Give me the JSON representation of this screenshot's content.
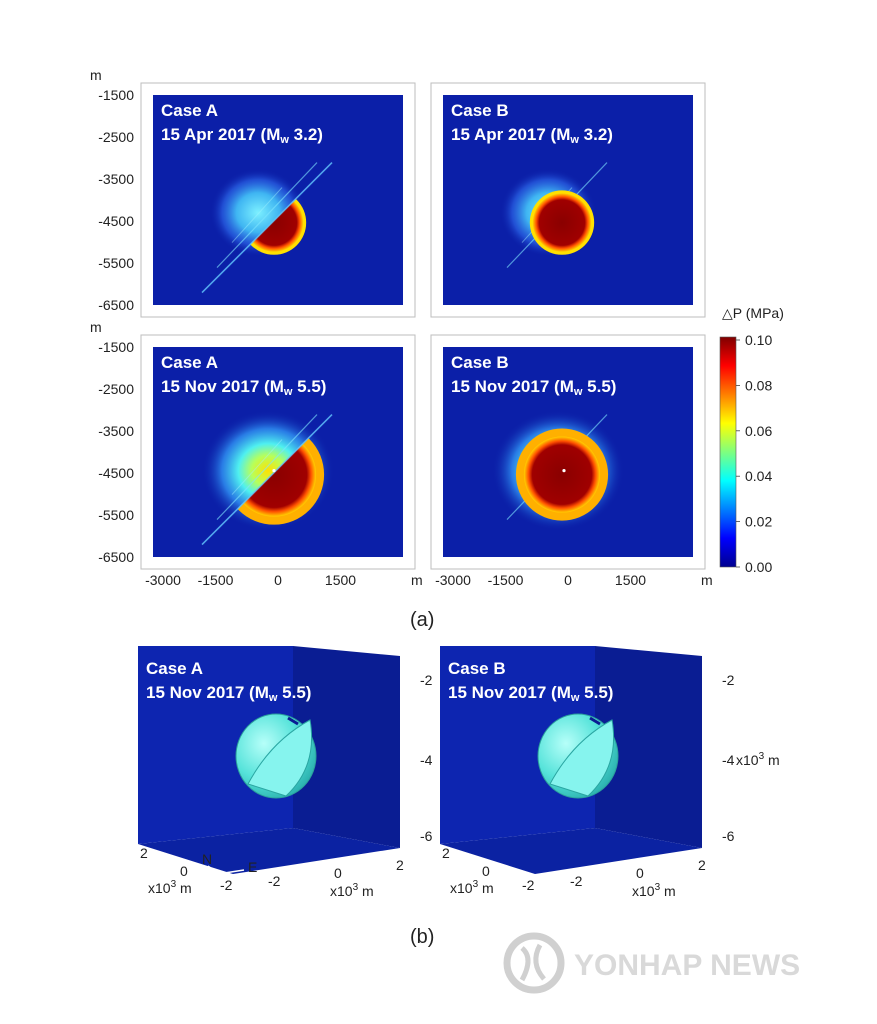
{
  "chart_data": [
    {
      "type": "heatmap",
      "title": "Case A",
      "subtitle": "15 Apr 2017 (Mw 3.2)",
      "subtitle_prefix": "15 Apr 2017 (",
      "subtitle_mag_main": "M",
      "subtitle_mag_sub": "w",
      "subtitle_suffix": " 3.2)",
      "variable": "ΔP (MPa)",
      "ylabel": "m",
      "yticks": [
        "-1500",
        "-2500",
        "-3500",
        "-4500",
        "-5500",
        "-6500"
      ],
      "ylim": [
        -6500,
        -1500
      ],
      "xlim": [
        -3000,
        3000
      ],
      "source_center": [
        0,
        -4300
      ],
      "source_radius_m": 500,
      "fault_cut": true,
      "max_value": 0.1
    },
    {
      "type": "heatmap",
      "title": "Case B",
      "subtitle": "15 Apr 2017 (Mw 3.2)",
      "subtitle_prefix": "15 Apr 2017 (",
      "subtitle_mag_main": "M",
      "subtitle_mag_sub": "w",
      "subtitle_suffix": " 3.2)",
      "variable": "ΔP (MPa)",
      "ylim": [
        -6500,
        -1500
      ],
      "xlim": [
        -3000,
        3000
      ],
      "source_center": [
        0,
        -4300
      ],
      "source_radius_m": 500,
      "fault_cut": false,
      "max_value": 0.1
    },
    {
      "type": "heatmap",
      "title": "Case A",
      "subtitle": "15 Nov 2017 (Mw 5.5)",
      "subtitle_prefix": "15 Nov 2017 (",
      "subtitle_mag_main": "M",
      "subtitle_mag_sub": "w",
      "subtitle_suffix": " 5.5)",
      "variable": "ΔP (MPa)",
      "ylabel": "m",
      "yticks": [
        "-1500",
        "-2500",
        "-3500",
        "-4500",
        "-5500",
        "-6500"
      ],
      "xlabel": "m",
      "xticks": [
        "-3000",
        "-1500",
        "0",
        "1500"
      ],
      "ylim": [
        -6500,
        -1500
      ],
      "xlim": [
        -3000,
        3000
      ],
      "source_center": [
        0,
        -4300
      ],
      "source_radius_m": 550,
      "fault_cut": true,
      "max_value": 0.1
    },
    {
      "type": "heatmap",
      "title": "Case B",
      "subtitle": "15 Nov 2017 (Mw 5.5)",
      "subtitle_prefix": "15 Nov 2017 (",
      "subtitle_mag_main": "M",
      "subtitle_mag_sub": "w",
      "subtitle_suffix": " 5.5)",
      "variable": "ΔP (MPa)",
      "xlabel": "m",
      "xticks": [
        "-3000",
        "-1500",
        "0",
        "1500"
      ],
      "ylim": [
        -6500,
        -1500
      ],
      "xlim": [
        -3000,
        3000
      ],
      "source_center": [
        0,
        -4300
      ],
      "source_radius_m": 550,
      "fault_cut": false,
      "max_value": 0.1
    }
  ],
  "colorbar": {
    "label": "△P (MPa)",
    "ticks": [
      "0.10",
      "0.08",
      "0.06",
      "0.04",
      "0.02",
      "0.00"
    ],
    "range": [
      0,
      0.1
    ],
    "colors": [
      "#00008f",
      "#0000ff",
      "#007fff",
      "#00ffff",
      "#7fff7f",
      "#ffff00",
      "#ff7f00",
      "#ff0000",
      "#7f0000"
    ]
  },
  "panel_a_label": "(a)",
  "panel_b_label": "(b)",
  "panels_3d": [
    {
      "title": "Case A",
      "subtitle_prefix": "15 Nov 2017 (",
      "subtitle_mag_main": "M",
      "subtitle_mag_sub": "w",
      "subtitle_suffix": " 5.5)",
      "z_ticks": [
        "-2",
        "-4",
        "-6"
      ],
      "z_unit": "",
      "y_ticks": [
        "2",
        "0",
        "-2"
      ],
      "y_unit_main": "x10",
      "y_unit_exp": "3",
      "y_unit_tail": " m",
      "x_ticks": [
        "-2",
        "0",
        "2"
      ],
      "x_unit_main": "x10",
      "x_unit_exp": "3",
      "x_unit_tail": " m",
      "compass_n": "N",
      "compass_e": "E"
    },
    {
      "title": "Case B",
      "subtitle_prefix": "15 Nov 2017 (",
      "subtitle_mag_main": "M",
      "subtitle_mag_sub": "w",
      "subtitle_suffix": " 5.5)",
      "z_ticks": [
        "-2",
        "-4",
        "-6"
      ],
      "z_unit_main": "x10",
      "z_unit_exp": "3",
      "z_unit_tail": " m",
      "y_ticks": [
        "2",
        "0",
        "-2"
      ],
      "y_unit_main": "x10",
      "y_unit_exp": "3",
      "y_unit_tail": " m",
      "x_ticks": [
        "-2",
        "0",
        "2"
      ],
      "x_unit_main": "x10",
      "x_unit_exp": "3",
      "x_unit_tail": " m"
    }
  ],
  "watermark": "YONHAP NEWS",
  "colors": {
    "field_bg": "#0b1fa8",
    "halo_outer": "#2d6be8",
    "halo_inner": "#4fd6f0",
    "core": "#8a0000",
    "shell": "#5fe8e0"
  }
}
